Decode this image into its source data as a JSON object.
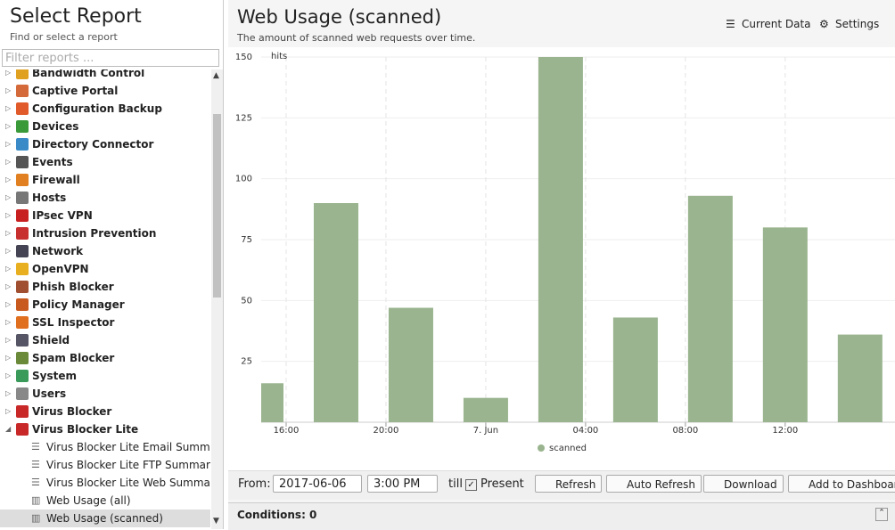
{
  "left": {
    "title": "Select Report",
    "subtitle": "Find or select a report",
    "filter_placeholder": "Filter reports ...",
    "tree": [
      "Bandwidth Control",
      "Captive Portal",
      "Configuration Backup",
      "Devices",
      "Directory Connector",
      "Events",
      "Firewall",
      "Hosts",
      "IPsec VPN",
      "Intrusion Prevention",
      "Network",
      "OpenVPN",
      "Phish Blocker",
      "Policy Manager",
      "SSL Inspector",
      "Shield",
      "Spam Blocker",
      "System",
      "Users",
      "Virus Blocker",
      "Virus Blocker Lite"
    ],
    "children": [
      "Virus Blocker Lite Email Summary",
      "Virus Blocker Lite FTP Summary",
      "Virus Blocker Lite Web Summary",
      "Web Usage (all)",
      "Web Usage (scanned)"
    ]
  },
  "right": {
    "title": "Web Usage (scanned)",
    "subtitle": "The amount of scanned web requests over time.",
    "current_data": "Current Data",
    "settings": "Settings"
  },
  "chart_data": {
    "type": "bar",
    "y_label": "hits",
    "x": [
      15,
      18,
      21,
      24,
      27,
      30,
      33,
      36,
      39
    ],
    "series": [
      {
        "name": "scanned",
        "color": "#99b48e",
        "values": [
          16,
          90,
          47,
          10,
          150,
          43,
          93,
          80,
          36
        ]
      }
    ],
    "xlim": [
      15,
      40.4
    ],
    "xticks": [
      {
        "value": 16,
        "label": "16:00"
      },
      {
        "value": 20,
        "label": "20:00"
      },
      {
        "value": 24,
        "label": "7. Jun"
      },
      {
        "value": 28,
        "label": "04:00"
      },
      {
        "value": 32,
        "label": "08:00"
      },
      {
        "value": 36,
        "label": "12:00"
      }
    ],
    "ylim": [
      0,
      150
    ],
    "yticks": [
      25,
      50,
      75,
      100,
      125,
      150
    ],
    "grid": true,
    "legend": "bottom"
  },
  "toolbar": {
    "from": "From:",
    "date": "2017-06-06",
    "time": "3:00 PM",
    "till": "till",
    "present": "Present",
    "refresh": "Refresh",
    "auto_refresh": "Auto Refresh",
    "download": "Download",
    "add": "Add to Dashboard"
  },
  "conditions": "Conditions: 0"
}
